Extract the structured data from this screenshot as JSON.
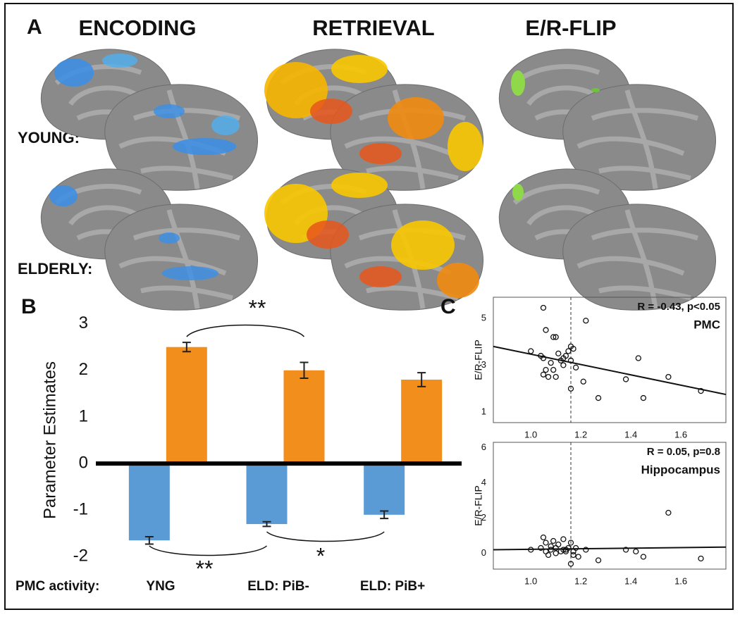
{
  "panel_a": {
    "label": "A",
    "columns": [
      "ENCODING",
      "RETRIEVAL",
      "E/R-FLIP"
    ],
    "rows": [
      "YOUNG:",
      "ELDERLY:"
    ]
  },
  "chart_data": [
    {
      "type": "bar",
      "panel": "B",
      "ylabel": "Parameter Estimates",
      "x_prefix": "PMC activity:",
      "categories": [
        "YNG",
        "ELD: PiB-",
        "ELD: PiB+"
      ],
      "ylim": [
        -2.1,
        3.1
      ],
      "yticks": [
        -2,
        -1,
        0,
        1,
        2,
        3
      ],
      "series": [
        {
          "color": "#5b9bd5",
          "values": [
            -1.65,
            -1.3,
            -1.1
          ],
          "errors": [
            0.08,
            0.05,
            0.08
          ]
        },
        {
          "color": "#f28e1c",
          "values": [
            2.5,
            2.0,
            1.8
          ],
          "errors": [
            0.1,
            0.17,
            0.15
          ]
        }
      ],
      "annotations": [
        "**",
        "**",
        "*"
      ]
    },
    {
      "type": "scatter",
      "panel": "C",
      "ylabel": "E/R-FLIP",
      "annotation": "R = -0.43, p<0.05",
      "region": "PMC",
      "x": [
        1.0,
        1.05,
        1.06,
        1.04,
        1.05,
        1.06,
        1.07,
        1.05,
        1.08,
        1.09,
        1.1,
        1.1,
        1.11,
        1.12,
        1.13,
        1.14,
        1.15,
        1.16,
        1.17,
        1.16,
        1.18,
        1.16,
        1.21,
        1.22,
        1.27,
        1.38,
        1.43,
        1.45,
        1.55,
        1.68,
        1.09,
        1.13
      ],
      "y": [
        3.6,
        5.45,
        4.5,
        3.4,
        3.3,
        2.8,
        2.5,
        2.6,
        3.1,
        4.2,
        4.2,
        2.5,
        3.5,
        3.2,
        3.3,
        3.4,
        3.6,
        3.8,
        3.7,
        3.2,
        2.9,
        2.0,
        2.3,
        4.9,
        1.6,
        2.4,
        3.3,
        1.6,
        2.5,
        1.9,
        2.8,
        3.0
      ],
      "xlim": [
        0.85,
        1.78
      ],
      "ylim": [
        0.55,
        5.9
      ],
      "xticks": [
        {
          "value": 1,
          "label": "1.0"
        },
        1.2,
        1.4,
        1.6
      ],
      "yticks": [
        1,
        3,
        5
      ],
      "fit": {
        "x": [
          0.85,
          1.78
        ],
        "y": [
          3.8,
          1.75
        ]
      },
      "vline": 1.16
    },
    {
      "type": "scatter",
      "ylabel": "E/R-FLIP",
      "annotation": "R = 0.05, p=0.8",
      "region": "Hippocampus",
      "x": [
        1.0,
        1.04,
        1.05,
        1.06,
        1.06,
        1.07,
        1.08,
        1.08,
        1.09,
        1.1,
        1.1,
        1.11,
        1.12,
        1.13,
        1.13,
        1.14,
        1.14,
        1.15,
        1.16,
        1.16,
        1.17,
        1.17,
        1.18,
        1.19,
        1.22,
        1.27,
        1.38,
        1.42,
        1.45,
        1.55,
        1.68
      ],
      "y": [
        0.2,
        0.3,
        0.9,
        0.1,
        0.6,
        -0.1,
        0.4,
        0.2,
        0.7,
        0.0,
        0.3,
        0.5,
        0.1,
        0.2,
        0.8,
        0.1,
        0.2,
        0.3,
        -0.6,
        0.6,
        0.1,
        -0.1,
        0.3,
        -0.2,
        0.2,
        -0.4,
        0.2,
        0.1,
        -0.2,
        2.3,
        -0.3
      ],
      "xlim": [
        0.85,
        1.78
      ],
      "ylim": [
        -0.9,
        6.3
      ],
      "xticks": [
        {
          "value": 1,
          "label": "1.0"
        },
        1.2,
        1.4,
        1.6
      ],
      "yticks": [
        0,
        2,
        4,
        6
      ],
      "fit": {
        "x": [
          0.85,
          1.78
        ],
        "y": [
          0.2,
          0.35
        ]
      },
      "vline": 1.16
    }
  ]
}
